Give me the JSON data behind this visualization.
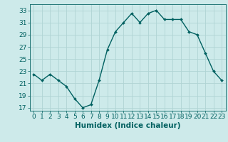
{
  "x": [
    0,
    1,
    2,
    3,
    4,
    5,
    6,
    7,
    8,
    9,
    10,
    11,
    12,
    13,
    14,
    15,
    16,
    17,
    18,
    19,
    20,
    21,
    22,
    23
  ],
  "y": [
    22.5,
    21.5,
    22.5,
    21.5,
    20.5,
    18.5,
    17.0,
    17.5,
    21.5,
    26.5,
    29.5,
    31.0,
    32.5,
    31.0,
    32.5,
    33.0,
    31.5,
    31.5,
    31.5,
    29.5,
    29.0,
    26.0,
    23.0,
    21.5
  ],
  "line_color": "#006060",
  "marker": "D",
  "marker_size": 2.0,
  "bg_color": "#cdeaea",
  "grid_color": "#b0d4d4",
  "xlabel": "Humidex (Indice chaleur)",
  "xlim": [
    -0.5,
    23.5
  ],
  "ylim": [
    16.5,
    34.0
  ],
  "yticks": [
    17,
    19,
    21,
    23,
    25,
    27,
    29,
    31,
    33
  ],
  "xticks": [
    0,
    1,
    2,
    3,
    4,
    5,
    6,
    7,
    8,
    9,
    10,
    11,
    12,
    13,
    14,
    15,
    16,
    17,
    18,
    19,
    20,
    21,
    22,
    23
  ],
  "tick_color": "#006060",
  "label_color": "#006060",
  "tick_fontsize": 6.5,
  "xlabel_fontsize": 7.5,
  "linewidth": 1.0
}
